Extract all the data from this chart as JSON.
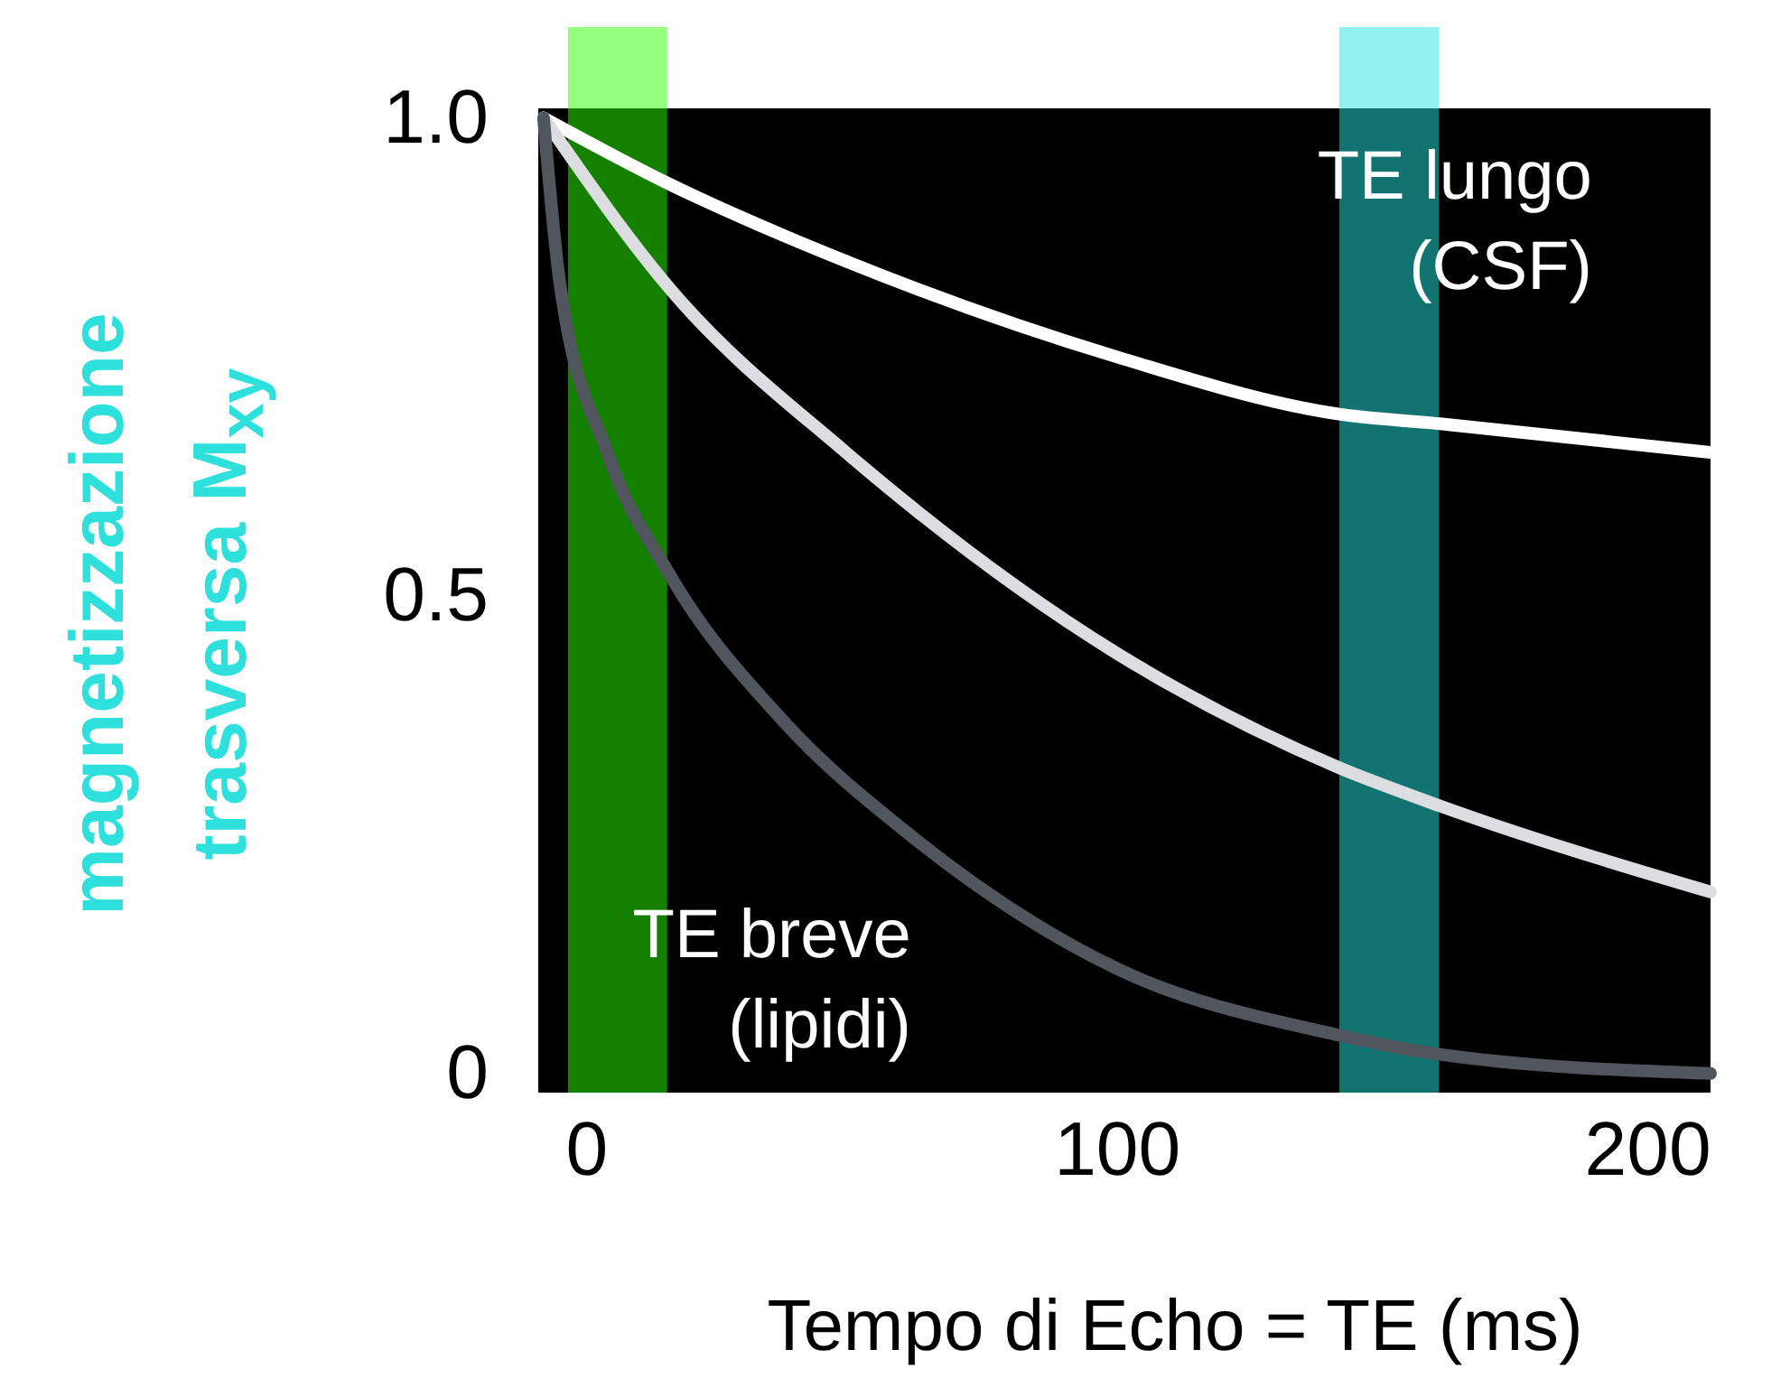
{
  "chart_data": {
    "type": "line",
    "xlabel": "Tempo di Echo = TE (ms)",
    "ylabel": "magnetizzazione\ntrasversa M$_{xy}$",
    "xlim": [
      -9,
      212
    ],
    "ylim": [
      -0.02,
      1.01
    ],
    "xticks": [
      0,
      100,
      200
    ],
    "yticks": [
      {
        "value": 0,
        "label": "0"
      },
      {
        "value": 0.5,
        "label": "0.5"
      },
      {
        "value": 1,
        "label": "1.0"
      }
    ],
    "series": [
      {
        "color": "#ffffff",
        "x": [
          -8,
          16,
          49,
          100,
          142,
          161,
          212
        ],
        "values": [
          1.0,
          0.93,
          0.85,
          0.75,
          0.69,
          0.68,
          0.65
        ]
      },
      {
        "color": "#dcdde0",
        "x": [
          -8,
          16,
          49,
          100,
          142,
          161,
          212
        ],
        "values": [
          1.0,
          0.82,
          0.65,
          0.44,
          0.32,
          0.28,
          0.19
        ]
      },
      {
        "color": "#50555e",
        "x": [
          -8,
          -5,
          4,
          16,
          37,
          61,
          100,
          142,
          161,
          212
        ],
        "values": [
          1.0,
          0.83,
          0.65,
          0.52,
          0.37,
          0.25,
          0.11,
          0.04,
          0.02,
          0.0
        ]
      }
    ],
    "bands": [
      {
        "axis": "x",
        "from": -3.4,
        "to": 15.3,
        "label": "TE breve\n(lipidi)",
        "color": "#2aff00"
      },
      {
        "axis": "x",
        "from": 142,
        "to": 160.8,
        "label": "TE lungo\n(CSF)",
        "color": "#25e6e0"
      }
    ],
    "grid": false
  }
}
